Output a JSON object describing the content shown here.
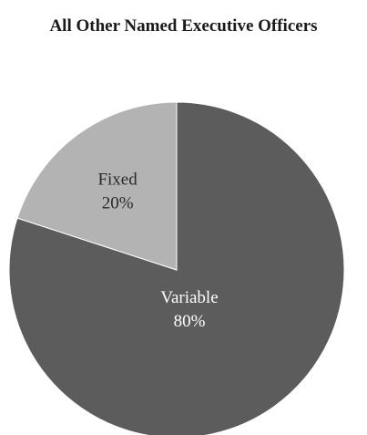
{
  "chart_data": {
    "type": "pie",
    "title": "All Other Named Executive Officers",
    "slices": [
      {
        "label": "Variable",
        "value": 80,
        "value_label": "80%",
        "color": "#5c5c5c",
        "text_color": "#ffffff"
      },
      {
        "label": "Fixed",
        "value": 20,
        "value_label": "20%",
        "color": "#b3b3b3",
        "text_color": "#2a2a2a"
      }
    ],
    "start": "top",
    "direction": "clockwise",
    "legend": "none"
  }
}
